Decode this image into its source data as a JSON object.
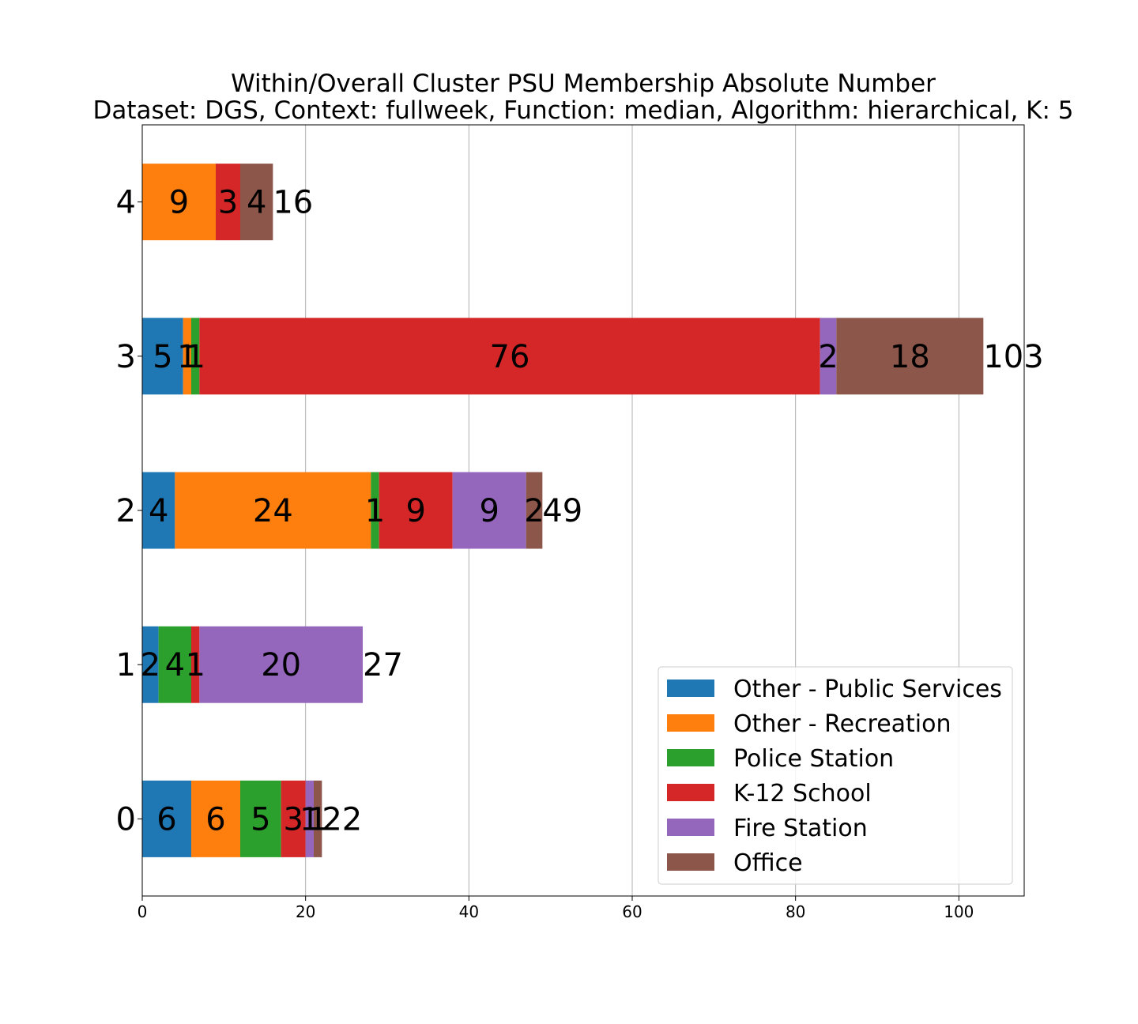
{
  "chart_data": {
    "type": "bar",
    "orientation": "horizontal",
    "stacked": true,
    "title": "Within/Overall Cluster PSU Membership Absolute Number",
    "subtitle": "Dataset: DGS, Context: fullweek, Function: median, Algorithm: hierarchical, K: 5",
    "xlabel": "",
    "ylabel": "",
    "categories": [
      "0",
      "1",
      "2",
      "3",
      "4"
    ],
    "xlim": [
      0,
      108
    ],
    "xticks": [
      0,
      20,
      40,
      60,
      80,
      100
    ],
    "grid": "vertical",
    "legend_position": "lower-right",
    "series": [
      {
        "name": "Other - Public Services",
        "color": "#1f77b4",
        "values": [
          6,
          2,
          4,
          5,
          0
        ]
      },
      {
        "name": "Other - Recreation",
        "color": "#ff7f0e",
        "values": [
          6,
          0,
          24,
          1,
          9
        ]
      },
      {
        "name": "Police Station",
        "color": "#2ca02c",
        "values": [
          5,
          4,
          1,
          1,
          0
        ]
      },
      {
        "name": "K-12 School",
        "color": "#d62728",
        "values": [
          3,
          1,
          9,
          76,
          3
        ]
      },
      {
        "name": "Fire Station",
        "color": "#9467bd",
        "values": [
          1,
          20,
          9,
          2,
          0
        ]
      },
      {
        "name": "Office",
        "color": "#8c564b",
        "values": [
          1,
          0,
          2,
          18,
          4
        ]
      }
    ],
    "totals": [
      22,
      27,
      49,
      103,
      16
    ]
  }
}
